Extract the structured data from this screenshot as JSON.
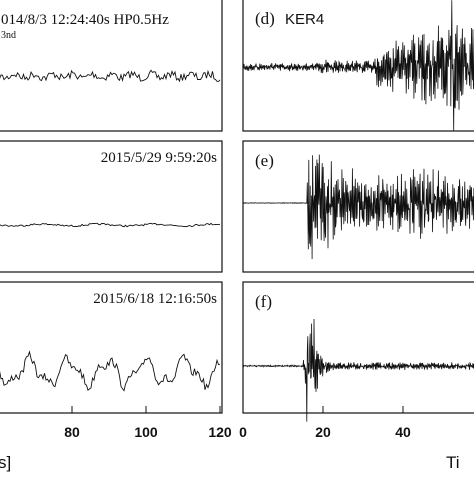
{
  "chart_data": [
    {
      "type": "line",
      "label": "",
      "annotation": "014/8/3 12:24:40s HP0.5Hz",
      "subnote": "3nd",
      "x_ticks": [],
      "trace": {
        "amplitude": [
          0.12
        ],
        "style": "noise"
      }
    },
    {
      "type": "line",
      "label": "",
      "annotation": "2015/5/29 9:59:20s",
      "x_ticks": [],
      "trace": {
        "amplitude": [
          0.03
        ],
        "style": "flat"
      }
    },
    {
      "type": "line",
      "label": "",
      "annotation": "2015/6/18 12:16:50s",
      "x_ticks": [
        80,
        100,
        120
      ],
      "x_tick_labels": [
        "80",
        "100",
        "120"
      ],
      "xlabel_fragment": "s]",
      "trace": {
        "amplitude": [
          0.35
        ],
        "style": "swell"
      }
    },
    {
      "type": "line",
      "label": "(d)",
      "station": "KER4",
      "x_ticks": [],
      "trace": {
        "onset_s": 33,
        "peak_s": 53,
        "peak_amplitude": 1.0,
        "style": "teleseism"
      }
    },
    {
      "type": "line",
      "label": "(e)",
      "x_ticks": [],
      "trace": {
        "onset_s": 16,
        "peak_s": 17,
        "peak_amplitude": 0.9,
        "style": "local"
      }
    },
    {
      "type": "line",
      "label": "(f)",
      "x_ticks": [
        0,
        20,
        40
      ],
      "x_tick_labels": [
        "0",
        "20",
        "40"
      ],
      "xlabel_fragment": "Ti",
      "trace": {
        "onset_s": 15,
        "peak_s": 17,
        "peak_amplitude": 1.0,
        "style": "impulse"
      }
    }
  ]
}
